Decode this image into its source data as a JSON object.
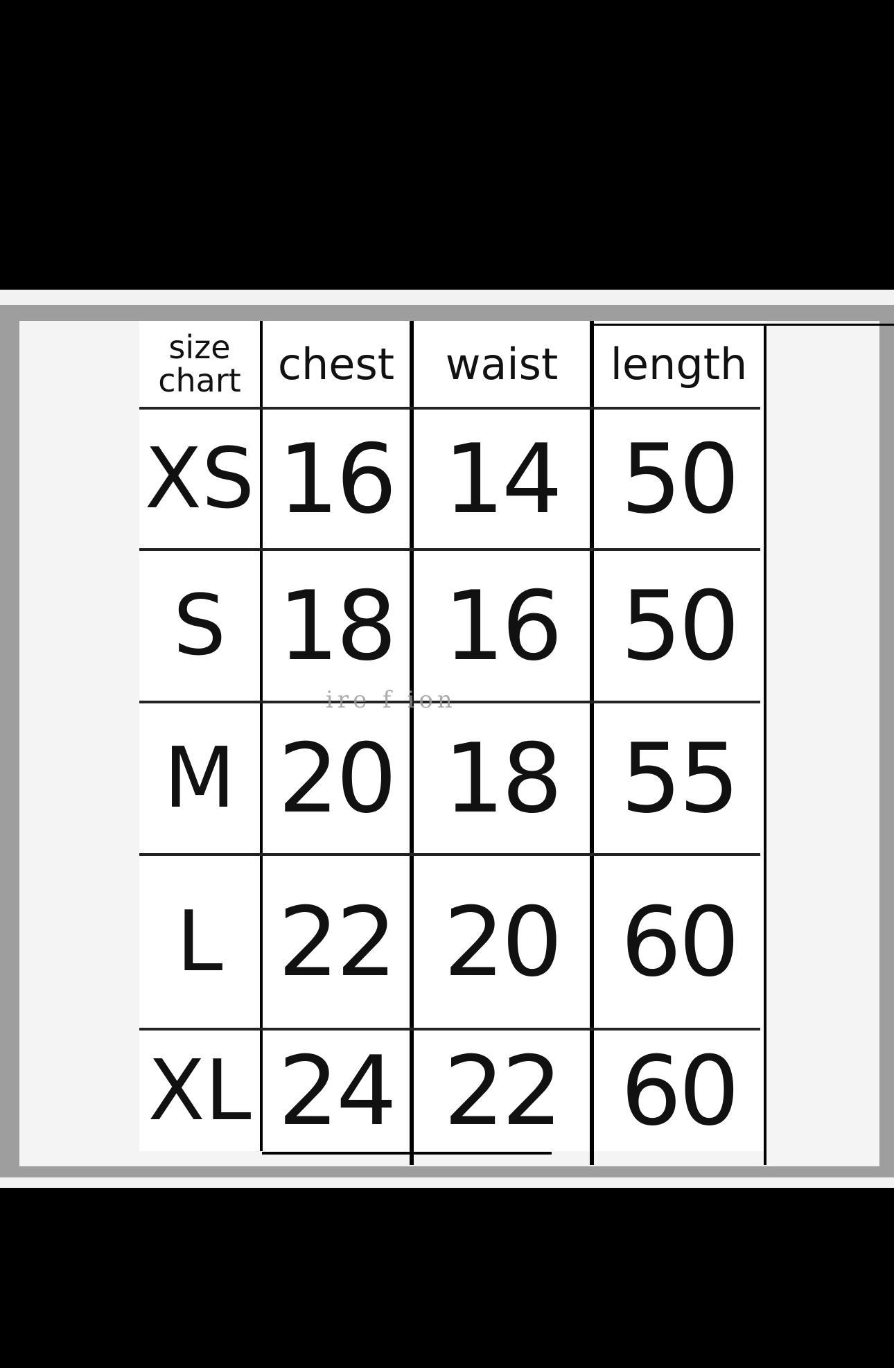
{
  "size_chart": {
    "corner_label_line1": "size",
    "corner_label_line2": "chart",
    "columns": [
      "chest",
      "waist",
      "length"
    ],
    "rows": [
      {
        "size": "XS",
        "chest": "16",
        "waist": "14",
        "length": "50"
      },
      {
        "size": "S",
        "chest": "18",
        "waist": "16",
        "length": "50"
      },
      {
        "size": "M",
        "chest": "20",
        "waist": "18",
        "length": "55"
      },
      {
        "size": "L",
        "chest": "22",
        "waist": "20",
        "length": "60"
      },
      {
        "size": "XL",
        "chest": "24",
        "waist": "22",
        "length": "60"
      }
    ],
    "watermark": "ire f ion"
  }
}
